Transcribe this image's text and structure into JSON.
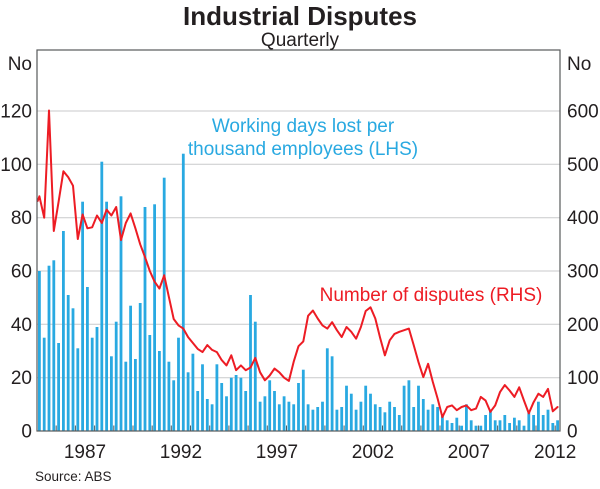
{
  "title": "Industrial Disputes",
  "subtitle": "Quarterly",
  "left_axis": {
    "unit": "No",
    "ticks": [
      0,
      20,
      40,
      60,
      80,
      100,
      120
    ]
  },
  "right_axis": {
    "unit": "No",
    "ticks": [
      0,
      100,
      200,
      300,
      400,
      500,
      600
    ]
  },
  "x_axis": {
    "labels": [
      "1987",
      "1992",
      "1997",
      "2002",
      "2007",
      "2012"
    ]
  },
  "legend": {
    "bars_label_line1": "Working days lost per",
    "bars_label_line2": "thousand employees (LHS)",
    "line_label": "Number of disputes (RHS)"
  },
  "source": "Source: ABS",
  "colors": {
    "bars": "#29A9E1",
    "line": "#ED1C24",
    "grid": "#C9CACB",
    "frame": "#58595B",
    "text": "#231F20"
  },
  "chart_data": {
    "type": "bar",
    "subtype": "bar-plus-line-combo",
    "frequency": "quarterly",
    "start_quarter": "1985Q1",
    "end_quarter": "2012Q1",
    "x_axis_range": [
      1985.0,
      2012.25
    ],
    "ylim_left": [
      0,
      142
    ],
    "ylim_right": [
      0,
      710
    ],
    "grid": "horizontal",
    "series": [
      {
        "name": "Working days lost per thousand employees",
        "axis": "LHS",
        "style": "bar",
        "values": [
          60,
          35,
          62,
          64,
          33,
          75,
          51,
          46,
          31,
          86,
          54,
          35,
          39,
          101,
          86,
          28,
          41,
          88,
          26,
          47,
          27,
          48,
          84,
          36,
          85,
          30,
          95,
          26,
          19,
          35,
          104,
          22,
          29,
          15,
          25,
          12,
          10,
          25,
          18,
          13,
          20,
          21,
          20,
          15,
          51,
          41,
          11,
          13,
          19,
          15,
          10,
          13,
          11,
          10,
          18,
          23,
          10,
          8,
          9,
          11,
          31,
          28,
          8,
          9,
          17,
          14,
          8,
          11,
          17,
          14,
          10,
          9,
          7,
          11,
          9,
          6,
          17,
          19,
          9,
          17,
          12,
          8,
          10,
          9,
          6,
          4,
          3,
          5,
          2,
          10,
          4,
          2,
          2,
          6,
          8,
          4,
          4,
          6,
          3,
          5,
          4,
          2,
          7,
          6,
          11,
          6,
          8,
          3,
          4
        ]
      },
      {
        "name": "Number of disputes",
        "axis": "RHS",
        "style": "line",
        "values": [
          440,
          400,
          601,
          375,
          430,
          487,
          476,
          460,
          360,
          406,
          380,
          382,
          404,
          390,
          415,
          404,
          420,
          358,
          390,
          408,
          380,
          350,
          326,
          300,
          280,
          267,
          292,
          251,
          210,
          198,
          192,
          176,
          165,
          154,
          148,
          161,
          152,
          148,
          133,
          123,
          142,
          114,
          123,
          114,
          119,
          137,
          110,
          95,
          104,
          117,
          110,
          100,
          94,
          130,
          159,
          168,
          216,
          226,
          211,
          198,
          192,
          204,
          189,
          176,
          195,
          186,
          173,
          195,
          225,
          232,
          211,
          175,
          142,
          170,
          182,
          186,
          189,
          192,
          161,
          129,
          101,
          126,
          92,
          61,
          26,
          45,
          48,
          39,
          45,
          48,
          39,
          42,
          64,
          57,
          36,
          48,
          73,
          86,
          76,
          64,
          82,
          57,
          33,
          54,
          70,
          64,
          79,
          37,
          45
        ]
      }
    ]
  }
}
